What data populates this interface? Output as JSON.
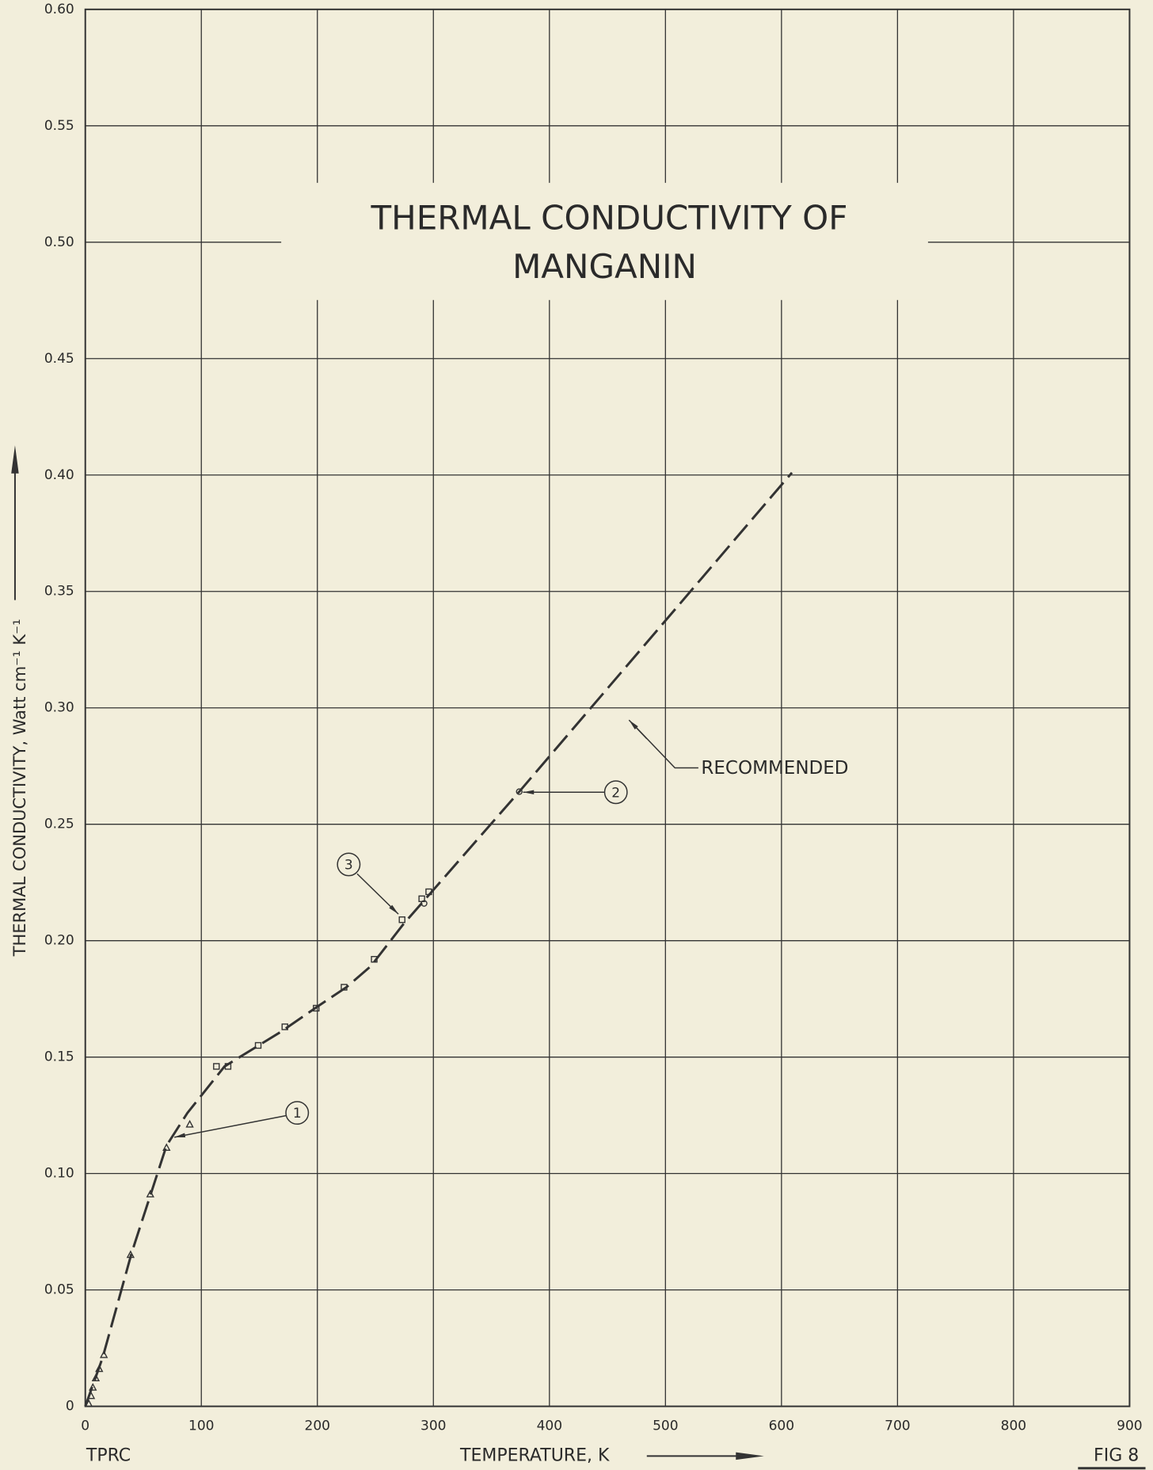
{
  "chart_data": {
    "type": "line",
    "title": [
      "THERMAL CONDUCTIVITY OF",
      "MANGANIN"
    ],
    "xlabel": "TEMPERATURE, K",
    "ylabel": "THERMAL CONDUCTIVITY, Watt cm⁻¹ K⁻¹",
    "annotations": [
      "TPRC",
      "FIG 8"
    ],
    "xlim": [
      0,
      900
    ],
    "xticks": [
      0,
      100,
      200,
      300,
      400,
      500,
      600,
      700,
      800,
      900
    ],
    "ylim": [
      0,
      0.6
    ],
    "yticks": [
      0,
      {
        "value": 0.05,
        "label": "0.05"
      },
      {
        "value": 0.1,
        "label": "0.10"
      },
      {
        "value": 0.15,
        "label": "0.15"
      },
      {
        "value": 0.2,
        "label": "0.20"
      },
      {
        "value": 0.25,
        "label": "0.25"
      },
      {
        "value": 0.3,
        "label": "0.30"
      },
      {
        "value": 0.35,
        "label": "0.35"
      },
      {
        "value": 0.4,
        "label": "0.40"
      },
      {
        "value": 0.45,
        "label": "0.45"
      },
      {
        "value": 0.5,
        "label": "0.50"
      },
      {
        "value": 0.55,
        "label": "0.55"
      },
      {
        "value": 0.6,
        "label": "0.60"
      }
    ],
    "grid": true,
    "series": [
      {
        "name": "RECOMMENDED",
        "color": "#333333",
        "style": "dashed",
        "x": [
          0,
          15,
          40,
          70,
          88,
          120,
          169,
          201,
          225,
          246,
          274,
          374,
          609
        ],
        "values": [
          0,
          0.021,
          0.066,
          0.112,
          0.126,
          0.146,
          0.161,
          0.172,
          0.18,
          0.189,
          0.207,
          0.264,
          0.401
        ]
      },
      {
        "name": "1",
        "color": "#333333",
        "marker": "triangle",
        "x": [
          3,
          5,
          6.5,
          9,
          12,
          16,
          39,
          56,
          70,
          90
        ],
        "values": [
          0.001,
          0.0044,
          0.008,
          0.012,
          0.016,
          0.022,
          0.065,
          0.091,
          0.111,
          0.121
        ]
      },
      {
        "name": "2",
        "color": "#333333",
        "marker": "circle",
        "x": [
          292,
          374
        ],
        "values": [
          0.216,
          0.264
        ]
      },
      {
        "name": "3",
        "color": "#333333",
        "marker": "square",
        "x": [
          113,
          123,
          149,
          172,
          199,
          223,
          249,
          273,
          290,
          296
        ],
        "values": [
          0.146,
          0.146,
          0.155,
          0.163,
          0.171,
          0.18,
          0.192,
          0.209,
          0.218,
          0.221
        ]
      }
    ]
  }
}
